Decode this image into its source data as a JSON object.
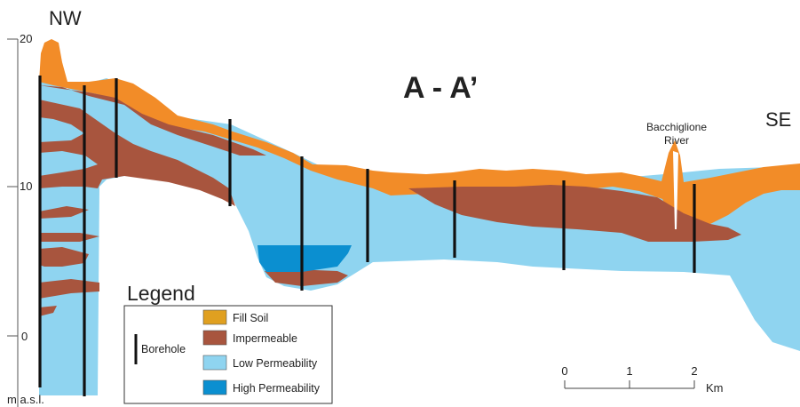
{
  "title": "A - A’",
  "orientation": {
    "left": "NW",
    "right": "SE"
  },
  "vertical_axis": {
    "unit_label": "m a.s.l.",
    "ticks": [
      "20",
      "10",
      "0"
    ]
  },
  "annotation": {
    "line1": "Bacchiglione",
    "line2": "River"
  },
  "legend": {
    "title": "Legend",
    "borehole_label": "Borehole",
    "items": [
      {
        "label": "Fill Soil",
        "color": "#e0a020"
      },
      {
        "label": "Impermeable",
        "color": "#a8553e"
      },
      {
        "label": "Low Permeability",
        "color": "#8fd4f0"
      },
      {
        "label": "High Permeability",
        "color": "#0b8fd0"
      }
    ]
  },
  "scale_bar": {
    "ticks": [
      "0",
      "1",
      "2"
    ],
    "unit": "Km"
  },
  "colors": {
    "fill_soil_section": "#f28c28",
    "impermeable_section": "#a8553e",
    "low_permeability": "#8fd4f0",
    "high_permeability": "#0b8fd0",
    "borehole": "#111111"
  }
}
